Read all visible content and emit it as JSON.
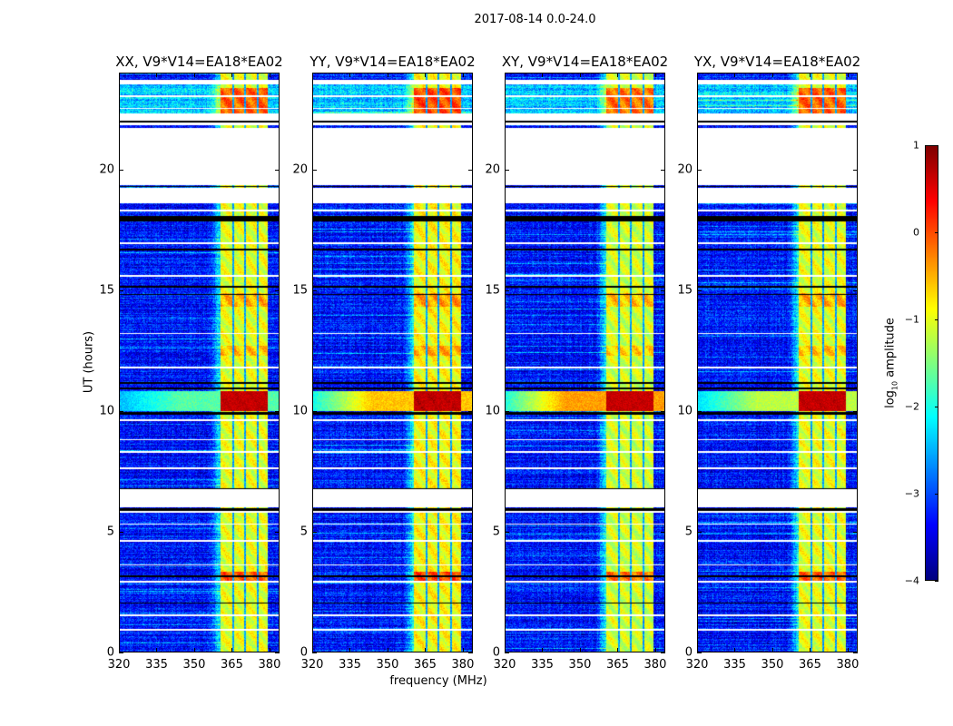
{
  "figure_title": "2017-08-14 0.0-24.0",
  "chart_data": {
    "type": "heatmap",
    "xlabel": "frequency (MHz)",
    "ylabel": "UT (hours)",
    "xlim": [
      320,
      384
    ],
    "ylim": [
      0,
      24
    ],
    "xticks": [
      "320",
      "335",
      "350",
      "365",
      "380"
    ],
    "xtick_values": [
      320,
      335,
      350,
      365,
      380
    ],
    "yticks": [
      "0",
      "5",
      "10",
      "15",
      "20"
    ],
    "ytick_values": [
      0,
      5,
      10,
      15,
      20
    ],
    "panels": [
      {
        "title": "XX, V9*V14=EA18*EA02",
        "broad_event": 1.3,
        "band_level": -1.0,
        "seed": 11
      },
      {
        "title": "YY, V9*V14=EA18*EA02",
        "broad_event": 2.4,
        "band_level": -0.9,
        "seed": 23
      },
      {
        "title": "XY, V9*V14=EA18*EA02",
        "broad_event": 2.6,
        "band_level": -1.1,
        "seed": 37
      },
      {
        "title": "YX, V9*V14=EA18*EA02",
        "broad_event": 1.8,
        "band_level": -1.0,
        "seed": 51
      }
    ],
    "rfi_band_mhz": [
      360.5,
      379.5
    ],
    "rfi_subband_gaps_mhz": [
      [
        365.2,
        365.9
      ],
      [
        370.2,
        370.9
      ],
      [
        375.2,
        375.9
      ]
    ],
    "background_log_amplitude": -3.3,
    "flagged_ut_ranges": [
      [
        23.55,
        23.75
      ],
      [
        22.05,
        22.35
      ],
      [
        21.85,
        21.95
      ],
      [
        19.35,
        21.05
      ],
      [
        18.6,
        19.25
      ],
      [
        21.15,
        21.65
      ],
      [
        6.0,
        6.75
      ],
      [
        5.75,
        5.85
      ]
    ],
    "flag_lines_ut": [
      23.05,
      22.55,
      21.1,
      21.7,
      18.3,
      16.95,
      15.6,
      13.2,
      11.8,
      9.6,
      8.8,
      8.3,
      7.6,
      5.3,
      4.6,
      3.6,
      2.9,
      1.5,
      0.9
    ],
    "dark_lines_ut": [
      [
        22.0,
        22.05
      ],
      [
        21.95,
        22.0
      ],
      [
        19.28,
        19.32
      ],
      [
        17.85,
        18.1
      ],
      [
        16.65,
        16.72
      ],
      [
        15.1,
        15.2
      ],
      [
        14.8,
        14.85
      ],
      [
        11.1,
        11.2
      ],
      [
        10.9,
        10.95
      ],
      [
        9.85,
        9.95
      ],
      [
        6.75,
        6.8
      ],
      [
        5.85,
        5.95
      ],
      [
        3.1,
        3.15
      ],
      [
        2.0,
        2.05
      ]
    ],
    "band_events_ut": [
      [
        22.3,
        23.4,
        0.9
      ],
      [
        10.0,
        10.8,
        1.4
      ],
      [
        2.9,
        3.3,
        0.9
      ],
      [
        12.3,
        12.7,
        0.4
      ],
      [
        14.3,
        14.9,
        0.5
      ]
    ],
    "broad_event_ut": [
      10.0,
      10.8
    ],
    "colorbar": {
      "label": "log10 amplitude",
      "range": [
        -4,
        1
      ],
      "ticks": [
        "1",
        "0",
        "−1",
        "−2",
        "−3",
        "−4"
      ],
      "tick_values": [
        1,
        0,
        -1,
        -2,
        -3,
        -4
      ],
      "colormap": "jet"
    }
  }
}
